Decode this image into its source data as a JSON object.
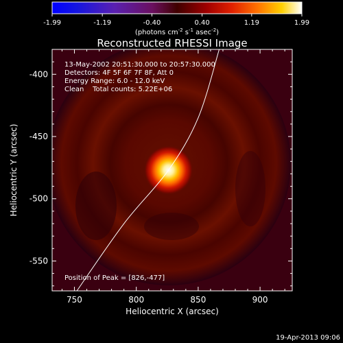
{
  "chart_data": {
    "type": "heatmap",
    "title": "Reconstructed RHESSI Image",
    "xlabel": "Heliocentric X (arcsec)",
    "ylabel": "Heliocentric Y (arcsec)",
    "xlim": [
      732,
      926
    ],
    "ylim": [
      -574,
      -380
    ],
    "x_ticks": [
      750,
      800,
      850,
      900
    ],
    "y_ticks": [
      -400,
      -450,
      -500,
      -550
    ],
    "colorbar": {
      "range": [
        -1.99,
        1.99
      ],
      "ticks": [
        "-1.99",
        "-1.19",
        "-0.40",
        "0.40",
        "1.19",
        "1.99"
      ],
      "label": "(photons cm",
      "label_exp1": "-2",
      "label_mid": " s",
      "label_exp2": "-1",
      "label_end": " asec",
      "label_exp3": "-2",
      "label_close": ")"
    },
    "annotations": [
      "13-May-2002 20:51:30.000 to 20:57:30.000",
      "Detectors: 4F 5F 6F 7F 8F, Att 0",
      "Energy Range: 6.0 - 12.0 keV",
      "Clean    Total counts: 5.22E+06"
    ],
    "peak_text": "Position of Peak = [826,-477]",
    "peak": {
      "x": 826,
      "y": -477,
      "value": 1.99
    },
    "limb_curve": [
      [
        752,
        -574
      ],
      [
        790,
        -520
      ],
      [
        826,
        -477
      ],
      [
        850,
        -435
      ],
      [
        867,
        -380
      ]
    ],
    "date_stamp": "19-Apr-2013 09:06",
    "grid": false,
    "colors": {
      "background": "#000000",
      "text": "#ffffff"
    }
  }
}
